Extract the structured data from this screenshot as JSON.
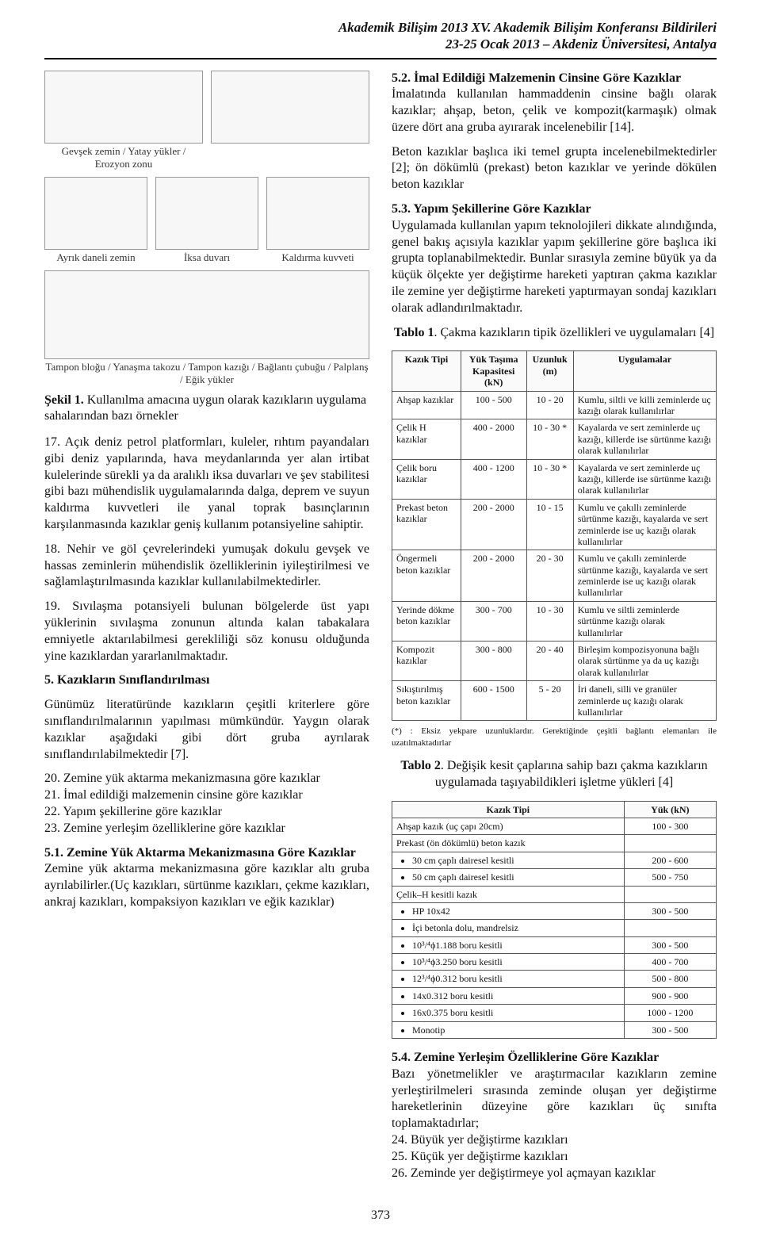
{
  "header": {
    "line1": "Akademik Bilişim 2013 XV. Akademik Bilişim Konferansı Bildirileri",
    "line2": "23-25 Ocak 2013 – Akdeniz Üniversitesi, Antalya"
  },
  "figure1": {
    "panel_labels": {
      "a": "Gevşek zemin / Yatay yükler / Erozyon zonu",
      "b": "",
      "c": "Ayrık daneli zemin",
      "d": "İksa duvarı",
      "e": "Kaldırma kuvveti",
      "f": "Tampon bloğu / Yanaşma takozu / Tampon kazığı / Bağlantı çubuğu / Palplanş / Eğik yükler"
    },
    "caption_bold": "Şekil 1.",
    "caption_rest": " Kullanılma amacına uygun olarak kazıkların uygulama sahalarından bazı örnekler"
  },
  "left": {
    "p17": "17. Açık deniz petrol platformları, kuleler, rıhtım payandaları gibi deniz yapılarında, hava meydanlarında yer alan irtibat kulelerinde sürekli ya da aralıklı iksa duvarları ve şev stabilitesi gibi bazı mühendislik uygulamalarında dalga, deprem ve suyun kaldırma kuvvetleri ile yanal toprak basınçlarının karşılanmasında kazıklar geniş kullanım potansiyeline sahiptir.",
    "p18": "18. Nehir ve göl çevrelerindeki yumuşak dokulu gevşek ve hassas zeminlerin mühendislik özelliklerinin iyileştirilmesi ve sağlamlaştırılmasında kazıklar kullanılabilmektedirler.",
    "p19": "19. Sıvılaşma potansiyeli bulunan bölgelerde üst yapı yüklerinin sıvılaşma zonunun altında kalan tabakalara emniyetle aktarılabilmesi gerekliliği söz konusu olduğunda yine kazıklardan yararlanılmaktadır.",
    "sec5_title": "5. Kazıkların Sınıflandırılması",
    "sec5_p1": "Günümüz literatüründe kazıkların çeşitli kriterlere göre sınıflandırılmalarının yapılması mümkündür. Yaygın olarak kazıklar aşağıdaki gibi dört gruba ayrılarak sınıflandırılabilmektedir [7].",
    "sec5_p2": "20. Zemine yük aktarma mekanizmasına göre kazıklar",
    "sec5_p3": "21. İmal edildiği malzemenin cinsine göre kazıklar",
    "sec5_p4": "22. Yapım şekillerine göre kazıklar",
    "sec5_p5": "23. Zemine yerleşim özelliklerine göre kazıklar",
    "sec51_title": "5.1. Zemine Yük Aktarma Mekanizmasına Göre Kazıklar",
    "sec51_p": "Zemine yük aktarma mekanizmasına göre kazıklar altı gruba ayrılabilirler.(Uç kazıkları, sürtünme kazıkları, çekme kazıkları, ankraj kazıkları, kompaksiyon kazıkları ve eğik kazıklar)"
  },
  "right": {
    "sec52_title": "5.2. İmal Edildiği Malzemenin Cinsine Göre Kazıklar",
    "sec52_p1": "İmalatında kullanılan hammaddenin cinsine bağlı olarak kazıklar; ahşap, beton, çelik ve kompozit(karmaşık) olmak üzere dört ana gruba ayırarak incelenebilir [14].",
    "sec52_p2": "Beton kazıklar başlıca iki temel grupta incelenebilmektedirler [2]; ön dökümlü (prekast) beton kazıklar ve yerinde dökülen beton kazıklar",
    "sec53_title": "5.3. Yapım Şekillerine Göre Kazıklar",
    "sec53_p": "Uygulamada kullanılan yapım teknolojileri dikkate alındığında, genel bakış açısıyla kazıklar yapım şekillerine göre başlıca iki grupta toplanabilmektedir. Bunlar sırasıyla zemine büyük ya da küçük ölçekte yer değiştirme hareketi yaptıran çakma kazıklar ile zemine yer değiştirme hareketi yaptırmayan sondaj kazıkları olarak adlandırılmaktadır.",
    "sec54_title": "5.4. Zemine Yerleşim Özelliklerine Göre Kazıklar",
    "sec54_p1": "Bazı yönetmelikler ve araştırmacılar kazıkların zemine yerleştirilmeleri sırasında zeminde oluşan yer değiştirme hareketlerinin düzeyine göre kazıkları üç sınıfta toplamaktadırlar;",
    "sec54_p2": "24. Büyük yer değiştirme kazıkları",
    "sec54_p3": "25. Küçük yer değiştirme kazıkları",
    "sec54_p4": "26. Zeminde yer değiştirmeye yol açmayan kazıklar"
  },
  "table1": {
    "caption_bold": "Tablo 1",
    "caption_rest": ". Çakma kazıkların tipik özellikleri ve uygulamaları [4]",
    "columns": [
      "Kazık Tipi",
      "Yük Taşıma Kapasitesi (kN)",
      "Uzunluk (m)",
      "Uygulamalar"
    ],
    "rows": [
      [
        "Ahşap kazıklar",
        "100 - 500",
        "10 - 20",
        "Kumlu, siltli ve killi zeminlerde uç kazığı olarak kullanılırlar"
      ],
      [
        "Çelik H kazıklar",
        "400 - 2000",
        "10 - 30 *",
        "Kayalarda ve sert zeminlerde uç kazığı, killerde ise sürtünme kazığı olarak kullanılırlar"
      ],
      [
        "Çelik boru kazıklar",
        "400 - 1200",
        "10 - 30 *",
        "Kayalarda ve sert zeminlerde uç kazığı, killerde ise sürtünme kazığı olarak kullanılırlar"
      ],
      [
        "Prekast beton kazıklar",
        "200 - 2000",
        "10 - 15",
        "Kumlu ve çakıllı zeminlerde sürtünme kazığı, kayalarda ve sert zeminlerde ise uç kazığı olarak kullanılırlar"
      ],
      [
        "Öngermeli beton kazıklar",
        "200 - 2000",
        "20 - 30",
        "Kumlu ve çakıllı zeminlerde sürtünme kazığı, kayalarda ve sert zeminlerde ise uç kazığı olarak kullanılırlar"
      ],
      [
        "Yerinde dökme beton kazıklar",
        "300 - 700",
        "10 - 30",
        "Kumlu ve siltli zeminlerde sürtünme kazığı olarak kullanılırlar"
      ],
      [
        "Kompozit kazıklar",
        "300 - 800",
        "20 - 40",
        "Birleşim kompozisyonuna bağlı olarak sürtünme ya da uç kazığı olarak kullanılırlar"
      ],
      [
        "Sıkıştırılmış beton kazıklar",
        "600 - 1500",
        "5 - 20",
        "İri daneli, silli ve granüler zeminlerde uç kazığı olarak kullanılırlar"
      ]
    ],
    "note": "(*) : Eksiz yekpare uzunluklardır. Gerektiğinde çeşitli bağlantı elemanları ile uzatılmaktadırlar"
  },
  "table2": {
    "caption_bold": "Tablo 2",
    "caption_rest": ". Değişik kesit çaplarına sahip bazı çakma kazıkların uygulamada taşıyabildikleri işletme yükleri [4]",
    "columns": [
      "Kazık Tipi",
      "Yük (kN)"
    ],
    "rows_simple": [
      [
        "Ahşap kazık (uç çapı 20cm)",
        "100 - 300"
      ],
      [
        "Prekast (ön dökümlü) beton kazık",
        ""
      ]
    ],
    "rows_sub1": [
      [
        "30 cm çaplı dairesel kesitli",
        "200 - 600"
      ],
      [
        "50 cm çaplı dairesel kesitli",
        "500 - 750"
      ]
    ],
    "rows_simple2": [
      [
        "Çelik–H kesitli kazık",
        ""
      ]
    ],
    "rows_sub2": [
      [
        "HP 10x42",
        "300 - 500"
      ],
      [
        "İçi betonla dolu, mandrelsiz",
        ""
      ],
      [
        "10³/⁴ϕ1.188 boru kesitli",
        "300 - 500"
      ],
      [
        "10³/⁴ϕ3.250 boru kesitli",
        "400 - 700"
      ],
      [
        "12³/⁴ϕ0.312 boru kesitli",
        "500 - 800"
      ],
      [
        "14x0.312 boru kesitli",
        "900 - 900"
      ],
      [
        "16x0.375 boru kesitli",
        "1000 - 1200"
      ],
      [
        "Monotip",
        "300 - 500"
      ]
    ]
  },
  "page_number": "373",
  "style": {
    "body_font": "Times New Roman",
    "body_fontsize_pt": 11,
    "header_fontsize_pt": 12,
    "table_fontsize_pt": 8,
    "border_color": "#555555",
    "background_color": "#ffffff",
    "text_color": "#111111"
  }
}
